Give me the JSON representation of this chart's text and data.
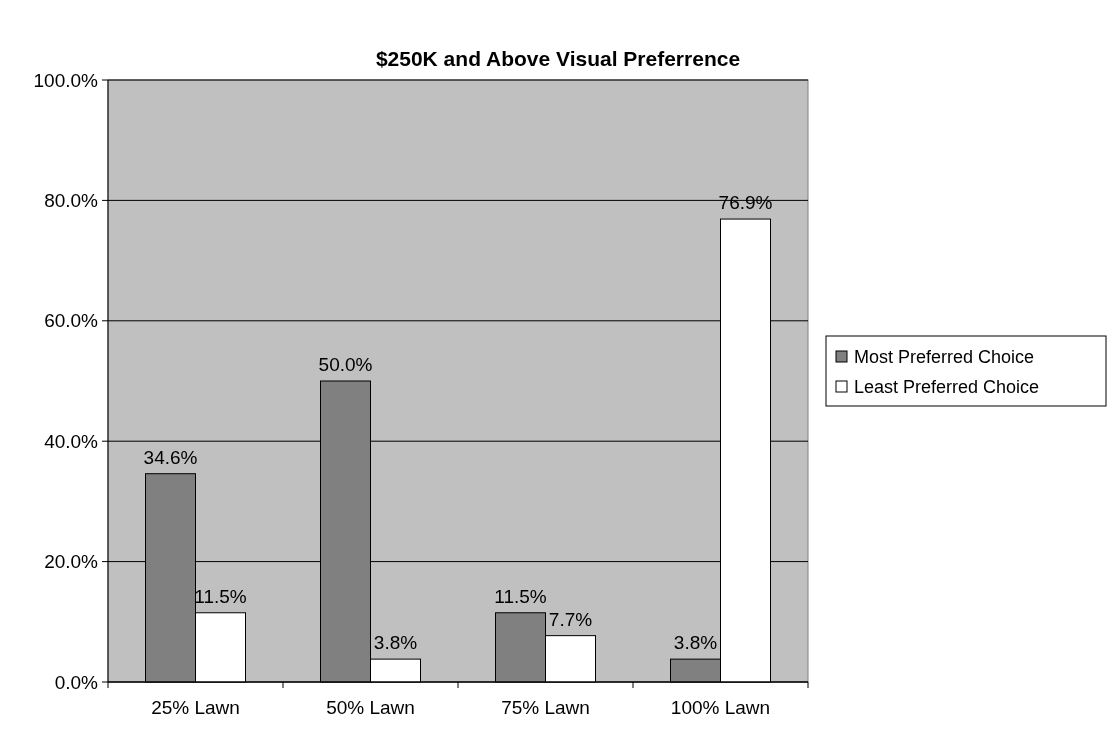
{
  "chart_data": {
    "type": "bar",
    "title": "$250K and Above Visual Preferrence",
    "categories": [
      "25% Lawn",
      "50% Lawn",
      "75% Lawn",
      "100% Lawn"
    ],
    "series": [
      {
        "name": "Most Preferred Choice",
        "color": "#808080",
        "values": [
          34.6,
          50.0,
          11.5,
          3.8
        ]
      },
      {
        "name": "Least Preferred Choice",
        "color": "#ffffff",
        "values": [
          11.5,
          3.8,
          7.7,
          76.9
        ]
      }
    ],
    "ylim": [
      0,
      100
    ],
    "yticks": [
      {
        "value": 0,
        "label": "0.0%"
      },
      {
        "value": 20,
        "label": "20.0%"
      },
      {
        "value": 40,
        "label": "40.0%"
      },
      {
        "value": 60,
        "label": "60.0%"
      },
      {
        "value": 80,
        "label": "80.0%"
      },
      {
        "value": 100,
        "label": "100.0%"
      }
    ],
    "value_labels": [
      [
        "34.6%",
        "50.0%",
        "11.5%",
        "3.8%"
      ],
      [
        "11.5%",
        "3.8%",
        "7.7%",
        "76.9%"
      ]
    ],
    "grid": "y",
    "legend": "right"
  }
}
